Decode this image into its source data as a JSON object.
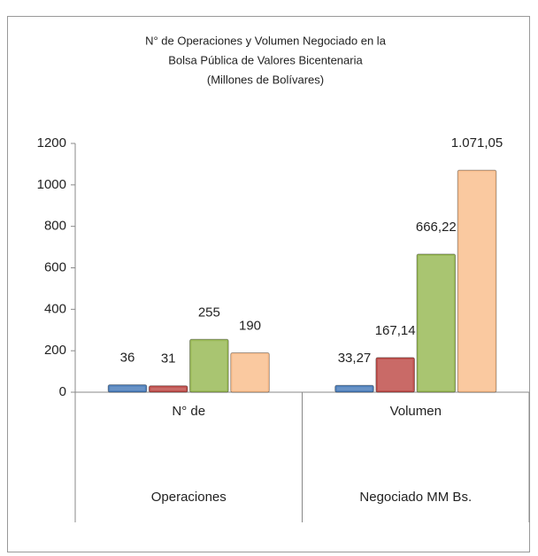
{
  "chart_data": {
    "type": "bar",
    "title": [
      "N° de Operaciones y Volumen Negociado en la",
      "Bolsa Pública de Valores Bicentenaria",
      "(Millones de Bolívares)"
    ],
    "categories": [
      [
        "N° de",
        "Operaciones"
      ],
      [
        "Volumen",
        "Negociado MM Bs."
      ]
    ],
    "series": [
      {
        "color": "#4f81bd",
        "values": [
          36,
          33.27
        ],
        "value_labels": [
          "36",
          "33,27"
        ]
      },
      {
        "color": "#c0504d",
        "values": [
          31,
          167.14
        ],
        "value_labels": [
          "31",
          "167,14"
        ]
      },
      {
        "color": "#9bbb59",
        "values": [
          255,
          666.22
        ],
        "value_labels": [
          "255",
          "666,22"
        ]
      },
      {
        "color": "#fac090",
        "values": [
          190,
          1071.05
        ],
        "value_labels": [
          "190",
          "1.071,05"
        ]
      }
    ],
    "ylim": [
      0,
      1200
    ],
    "yticks": [
      0,
      200,
      400,
      600,
      800,
      1000,
      1200
    ],
    "grid": false
  }
}
